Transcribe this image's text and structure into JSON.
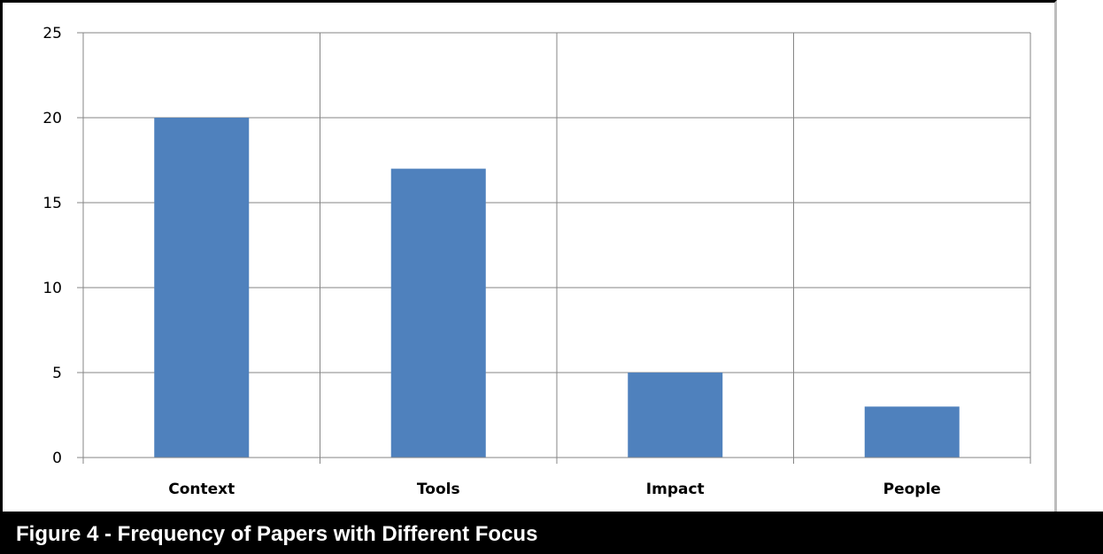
{
  "caption": "Figure 4 - Frequency of Papers with Different Focus",
  "chart_data": {
    "type": "bar",
    "categories": [
      "Context",
      "Tools",
      "Impact",
      "People"
    ],
    "values": [
      20,
      17,
      5,
      3
    ],
    "title": "",
    "xlabel": "",
    "ylabel": "",
    "ylim": [
      0,
      25
    ],
    "yticks": [
      0,
      5,
      10,
      15,
      20,
      25
    ],
    "grid": "on",
    "legend": "none",
    "bar_color": "#4f81bd",
    "grid_color": "#868686"
  }
}
